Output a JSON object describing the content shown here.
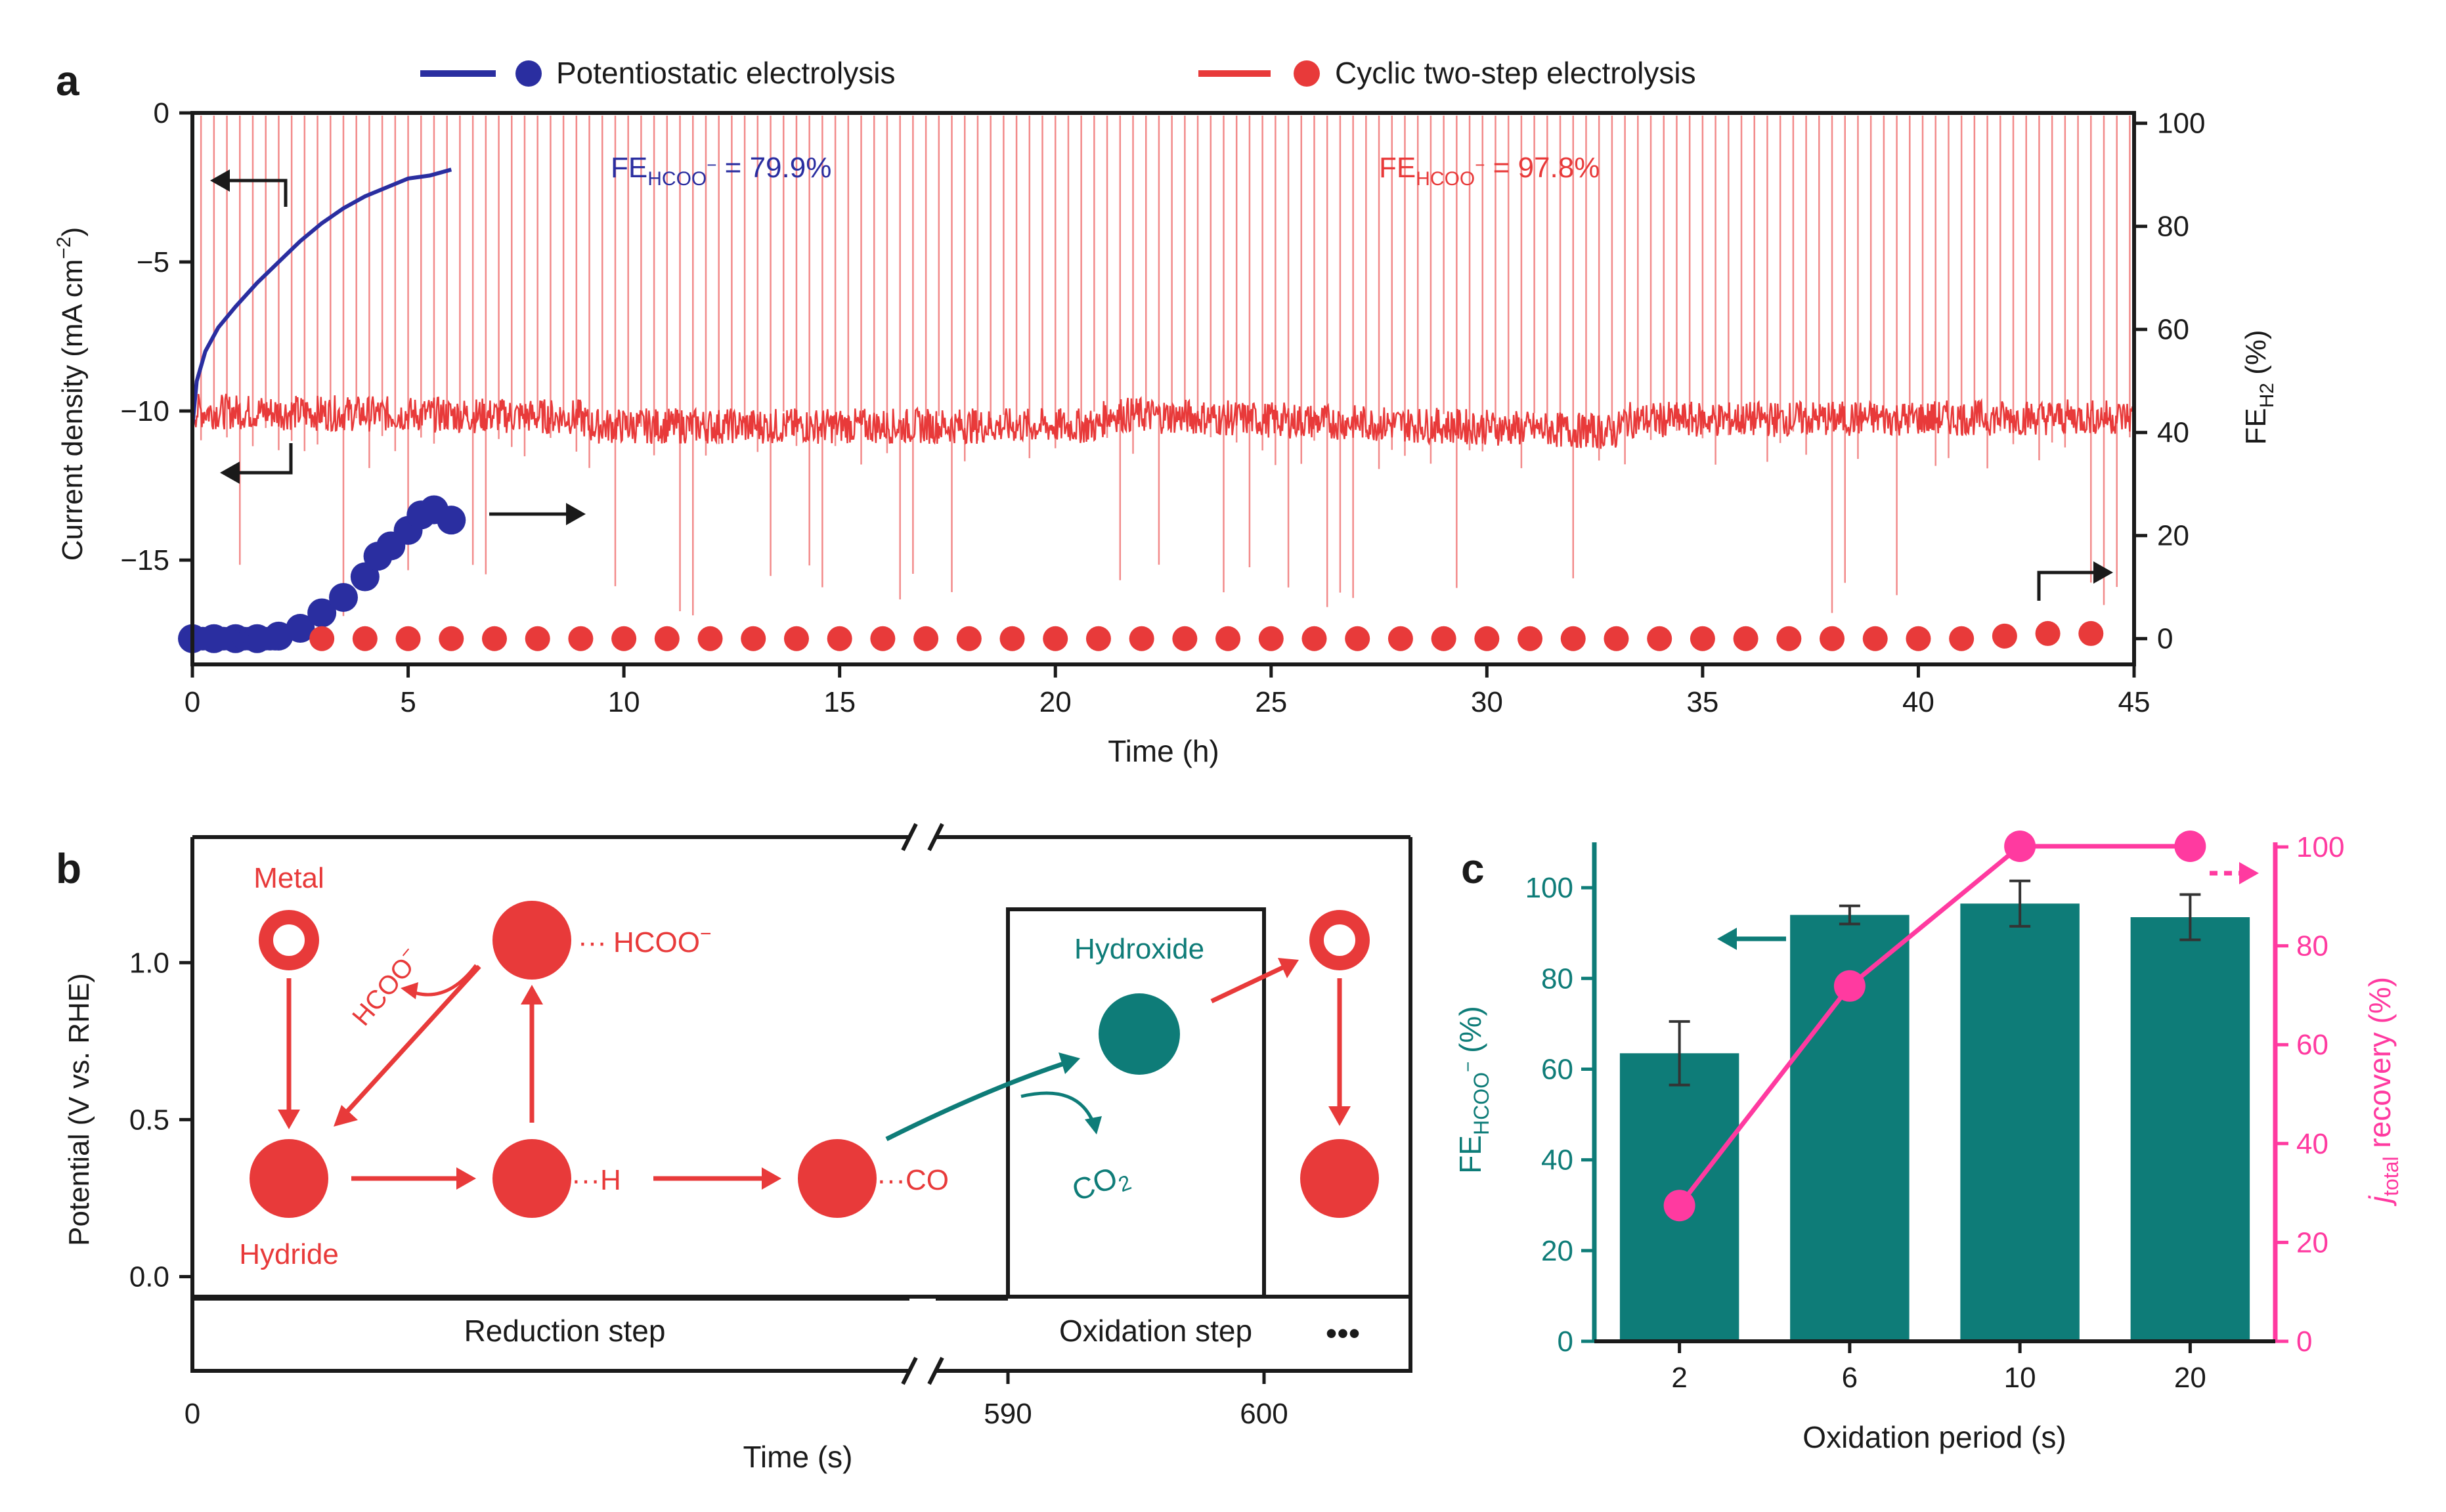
{
  "colors": {
    "blue": "#2a2ea0",
    "red": "#e83a3a",
    "red_light": "#f28a8a",
    "teal": "#0e7c78",
    "pink": "#ff3aa0",
    "black": "#1a1a1a"
  },
  "panels": {
    "a": "a",
    "b": "b",
    "c": "c"
  },
  "chart_data": [
    {
      "type": "scatter",
      "panel": "a",
      "title": "",
      "xlabel": "Time (h)",
      "ylabel_left": "Current density (mA cm",
      "ylabel_left_sup": "−2",
      "ylabel_left_close": ")",
      "ylabel_right_main": "FE",
      "ylabel_right_sub": "H2",
      "ylabel_right_unit": " (%)",
      "xlim": [
        0,
        45
      ],
      "ylim_left": [
        -18.5,
        0
      ],
      "ylim_right": [
        -5,
        102
      ],
      "x_ticks": [
        0,
        5,
        10,
        15,
        20,
        25,
        30,
        35,
        40,
        45
      ],
      "x_tick_labels": [
        "0",
        "5",
        "10",
        "15",
        "20",
        "25",
        "30",
        "35",
        "40",
        "45"
      ],
      "yleft_ticks": [
        0,
        -5,
        -10,
        -15
      ],
      "yleft_tick_labels": [
        "0",
        "−5",
        "−10",
        "−15"
      ],
      "yright_ticks": [
        0,
        20,
        40,
        60,
        80,
        100
      ],
      "yright_tick_labels": [
        "0",
        "20",
        "40",
        "60",
        "80",
        "100"
      ],
      "legend": [
        {
          "name": "Potentiostatic electrolysis",
          "color": "blue"
        },
        {
          "name": "Cyclic two-step electrolysis",
          "color": "red"
        }
      ],
      "annotations": [
        {
          "main": "FE",
          "sub": "HCOO",
          "sup": "−",
          "value": " = 79.9%",
          "color": "blue"
        },
        {
          "main": "FE",
          "sub": "HCOO",
          "sup": "−",
          "value": " = 97.8%",
          "color": "red"
        }
      ],
      "series": [
        {
          "name": "Potentiostatic current density",
          "axis": "left",
          "kind": "line",
          "x": [
            0,
            0.1,
            0.3,
            0.6,
            1,
            1.5,
            2,
            2.5,
            3,
            3.5,
            4,
            4.5,
            5,
            5.5,
            6
          ],
          "y": [
            -10.5,
            -9,
            -8,
            -7.2,
            -6.5,
            -5.7,
            -5,
            -4.3,
            -3.7,
            -3.2,
            -2.8,
            -2.5,
            -2.2,
            -2.1,
            -1.9
          ]
        },
        {
          "name": "Cyclic current density baseline",
          "axis": "left",
          "kind": "line",
          "x": [
            0,
            9,
            9.2,
            21,
            21.2,
            33,
            33.2,
            45
          ],
          "y": [
            -10,
            -10.2,
            -10.5,
            -10.5,
            -10.1,
            -10.7,
            -10.3,
            -10.2
          ]
        },
        {
          "name": "Potentiostatic FE H2",
          "axis": "right",
          "kind": "scatter",
          "x": [
            0,
            0.5,
            1,
            1.5,
            2,
            2.5,
            3,
            3.5,
            4,
            4.3,
            4.6,
            5,
            5.3,
            5.6,
            6
          ],
          "y": [
            0,
            0,
            0,
            0,
            0.5,
            2,
            5,
            8,
            12,
            16,
            18,
            21,
            24,
            25,
            23
          ]
        },
        {
          "name": "Cyclic FE H2",
          "axis": "right",
          "kind": "scatter",
          "x": [
            3,
            4,
            5,
            6,
            7,
            8,
            9,
            10,
            11,
            12,
            13,
            14,
            15,
            16,
            17,
            18,
            19,
            20,
            21,
            22,
            23,
            24,
            25,
            26,
            27,
            28,
            29,
            30,
            31,
            32,
            33,
            34,
            35,
            36,
            37,
            38,
            39,
            40,
            41,
            42,
            43,
            44
          ],
          "y": [
            0,
            0,
            0,
            0,
            0,
            0,
            0,
            0,
            0,
            0,
            0,
            0,
            0,
            0,
            0,
            0,
            0,
            0,
            0,
            0,
            0,
            0,
            0,
            0,
            0,
            0,
            0,
            0,
            0,
            0,
            0,
            0,
            0,
            0,
            0,
            0,
            0,
            0,
            0,
            0.5,
            1,
            1
          ]
        }
      ]
    },
    {
      "type": "diagram",
      "panel": "b",
      "xlabel": "Time (s)",
      "ylabel": "Potential (V vs. RHE)",
      "y_ticks": [
        0.0,
        0.5,
        1.0
      ],
      "y_tick_labels": [
        "0.0",
        "0.5",
        "1.0"
      ],
      "ylim": [
        -0.3,
        1.4
      ],
      "x_tick_labels": [
        "0",
        "590",
        "600"
      ],
      "labels": {
        "metal": "Metal",
        "hydride": "Hydride",
        "hcoo_right": "HCOO",
        "hcoo_sup": "−",
        "hcoo_diag": "HCOO",
        "h": "H",
        "co": "CO",
        "hydroxide": "Hydroxide",
        "co2_main": "CO",
        "co2_sub": "2",
        "dots_mark": "···",
        "reduction_step": "Reduction step",
        "oxidation_step": "Oxidation step",
        "more": "•••"
      }
    },
    {
      "type": "bar",
      "panel": "c",
      "xlabel": "Oxidation period (s)",
      "categories": [
        "2",
        "6",
        "10",
        "20"
      ],
      "series": [
        {
          "name": "FE HCOO−",
          "axis": "left",
          "kind": "bar",
          "values": [
            63.5,
            94,
            96.5,
            93.5
          ],
          "errors": [
            7,
            2,
            5,
            5
          ]
        },
        {
          "name": "j total recovery",
          "axis": "right",
          "kind": "line",
          "values": [
            23,
            67,
            95,
            95
          ]
        }
      ],
      "ylim_left": [
        0,
        110
      ],
      "ylim_right": [
        0,
        100
      ],
      "yleft_ticks": [
        0,
        20,
        40,
        60,
        80,
        100
      ],
      "yleft_tick_labels": [
        "0",
        "20",
        "40",
        "60",
        "80",
        "100"
      ],
      "yright_ticks": [
        0,
        20,
        40,
        60,
        80,
        100
      ],
      "yright_tick_labels": [
        "0",
        "20",
        "40",
        "60",
        "80",
        "100"
      ],
      "ylabel_left_main": "FE",
      "ylabel_left_sub": "HCOO",
      "ylabel_left_sup": "−",
      "ylabel_left_unit": " (%)",
      "ylabel_right_main": "j",
      "ylabel_right_sub": "total",
      "ylabel_right_rest": " recovery (%)"
    }
  ]
}
